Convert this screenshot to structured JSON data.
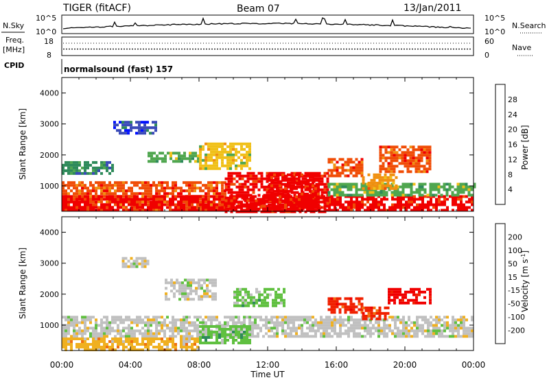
{
  "header": {
    "station": "TIGER (fitACF)",
    "beam": "Beam 07",
    "date": "13/Jan/2011"
  },
  "noise_panel": {
    "left_label": "N.Sky",
    "right_label": "N.Search",
    "left_ticks": [
      "10^5",
      "10^0"
    ],
    "right_ticks": [
      "10^5",
      "10^0"
    ]
  },
  "freq_panel": {
    "left_label_1": "Freq.",
    "left_label_2": "[MHz]",
    "right_label": "Nave",
    "left_ticks": [
      "18",
      "8"
    ],
    "right_ticks": [
      "60",
      "0"
    ],
    "freq_value_mhz": 11.5,
    "nave_value": 40
  },
  "cpid_panel": {
    "label": "CPID",
    "text": "normalsound (fast) 157"
  },
  "chart_data": [
    {
      "type": "heatmap",
      "name": "Power",
      "ylabel": "Slant Range [km]",
      "xlabel": "",
      "x_ticks": [
        "00:00",
        "04:00",
        "08:00",
        "12:00",
        "16:00",
        "20:00",
        "00:00"
      ],
      "x_range_hours": [
        0,
        24
      ],
      "y_range": [
        180,
        4500
      ],
      "y_ticks": [
        1000,
        2000,
        3000,
        4000
      ],
      "colorbar": {
        "label": "Power [dB]",
        "ticks": [
          "4",
          "8",
          "12",
          "16",
          "20",
          "24",
          "28"
        ],
        "colors": [
          "#0010ff",
          "#3a4ab8",
          "#2e8a5a",
          "#4fa64f",
          "#f0c018",
          "#f09010",
          "#f04c06",
          "#f00000"
        ]
      },
      "regions": [
        {
          "t": [
            0,
            9.5
          ],
          "r": [
            200,
            1150
          ],
          "c": 6
        },
        {
          "t": [
            0,
            24
          ],
          "r": [
            200,
            700
          ],
          "c": 7
        },
        {
          "t": [
            9.5,
            15.5
          ],
          "r": [
            200,
            1450
          ],
          "c": 7
        },
        {
          "t": [
            15.5,
            24
          ],
          "r": [
            700,
            1100
          ],
          "c": 3
        },
        {
          "t": [
            0,
            3
          ],
          "r": [
            1400,
            1800
          ],
          "c": 2
        },
        {
          "t": [
            3,
            5.5
          ],
          "r": [
            2700,
            3100
          ],
          "c": 1
        },
        {
          "t": [
            5,
            8
          ],
          "r": [
            1800,
            2100
          ],
          "c": 3
        },
        {
          "t": [
            8,
            11
          ],
          "r": [
            1600,
            2400
          ],
          "c": 4
        },
        {
          "t": [
            15.5,
            17.5
          ],
          "r": [
            1300,
            1900
          ],
          "c": 6
        },
        {
          "t": [
            17.5,
            19.5
          ],
          "r": [
            900,
            1400
          ],
          "c": 5
        },
        {
          "t": [
            18.5,
            21.5
          ],
          "r": [
            1500,
            2300
          ],
          "c": 6
        },
        {
          "t": [
            12,
            15
          ],
          "r": [
            200,
            1400
          ],
          "c": 7
        }
      ]
    },
    {
      "type": "heatmap",
      "name": "Velocity",
      "ylabel": "Slant Range [km]",
      "xlabel": "Time UT",
      "x_ticks": [
        "00:00",
        "04:00",
        "08:00",
        "12:00",
        "16:00",
        "20:00",
        "00:00"
      ],
      "x_range_hours": [
        0,
        24
      ],
      "y_range": [
        180,
        4500
      ],
      "y_ticks": [
        1000,
        2000,
        3000,
        4000
      ],
      "colorbar": {
        "label": "Velocity [m s-1]",
        "ticks": [
          "200",
          "100",
          "50",
          "15",
          "-15",
          "-50",
          "-100",
          "-200"
        ],
        "colors": [
          "#1020c0",
          "#3060c0",
          "#2e8a5a",
          "#60c040",
          "#c0c0c0",
          "#f0b020",
          "#f07010",
          "#f02000",
          "#f00000"
        ]
      },
      "regions": [
        {
          "t": [
            0,
            24
          ],
          "r": [
            600,
            1300
          ],
          "c": 4
        },
        {
          "t": [
            0,
            8
          ],
          "r": [
            200,
            600
          ],
          "c": 5
        },
        {
          "t": [
            8,
            11
          ],
          "r": [
            400,
            1000
          ],
          "c": 3
        },
        {
          "t": [
            15.5,
            17.5
          ],
          "r": [
            1400,
            1900
          ],
          "c": 7
        },
        {
          "t": [
            17.5,
            19
          ],
          "r": [
            1200,
            1600
          ],
          "c": 7
        },
        {
          "t": [
            19,
            21.5
          ],
          "r": [
            1700,
            2200
          ],
          "c": 8
        },
        {
          "t": [
            3.5,
            5
          ],
          "r": [
            2900,
            3200
          ],
          "c": 4
        },
        {
          "t": [
            6,
            9
          ],
          "r": [
            1800,
            2500
          ],
          "c": 4
        },
        {
          "t": [
            10,
            13
          ],
          "r": [
            1600,
            2200
          ],
          "c": 3
        }
      ]
    }
  ]
}
